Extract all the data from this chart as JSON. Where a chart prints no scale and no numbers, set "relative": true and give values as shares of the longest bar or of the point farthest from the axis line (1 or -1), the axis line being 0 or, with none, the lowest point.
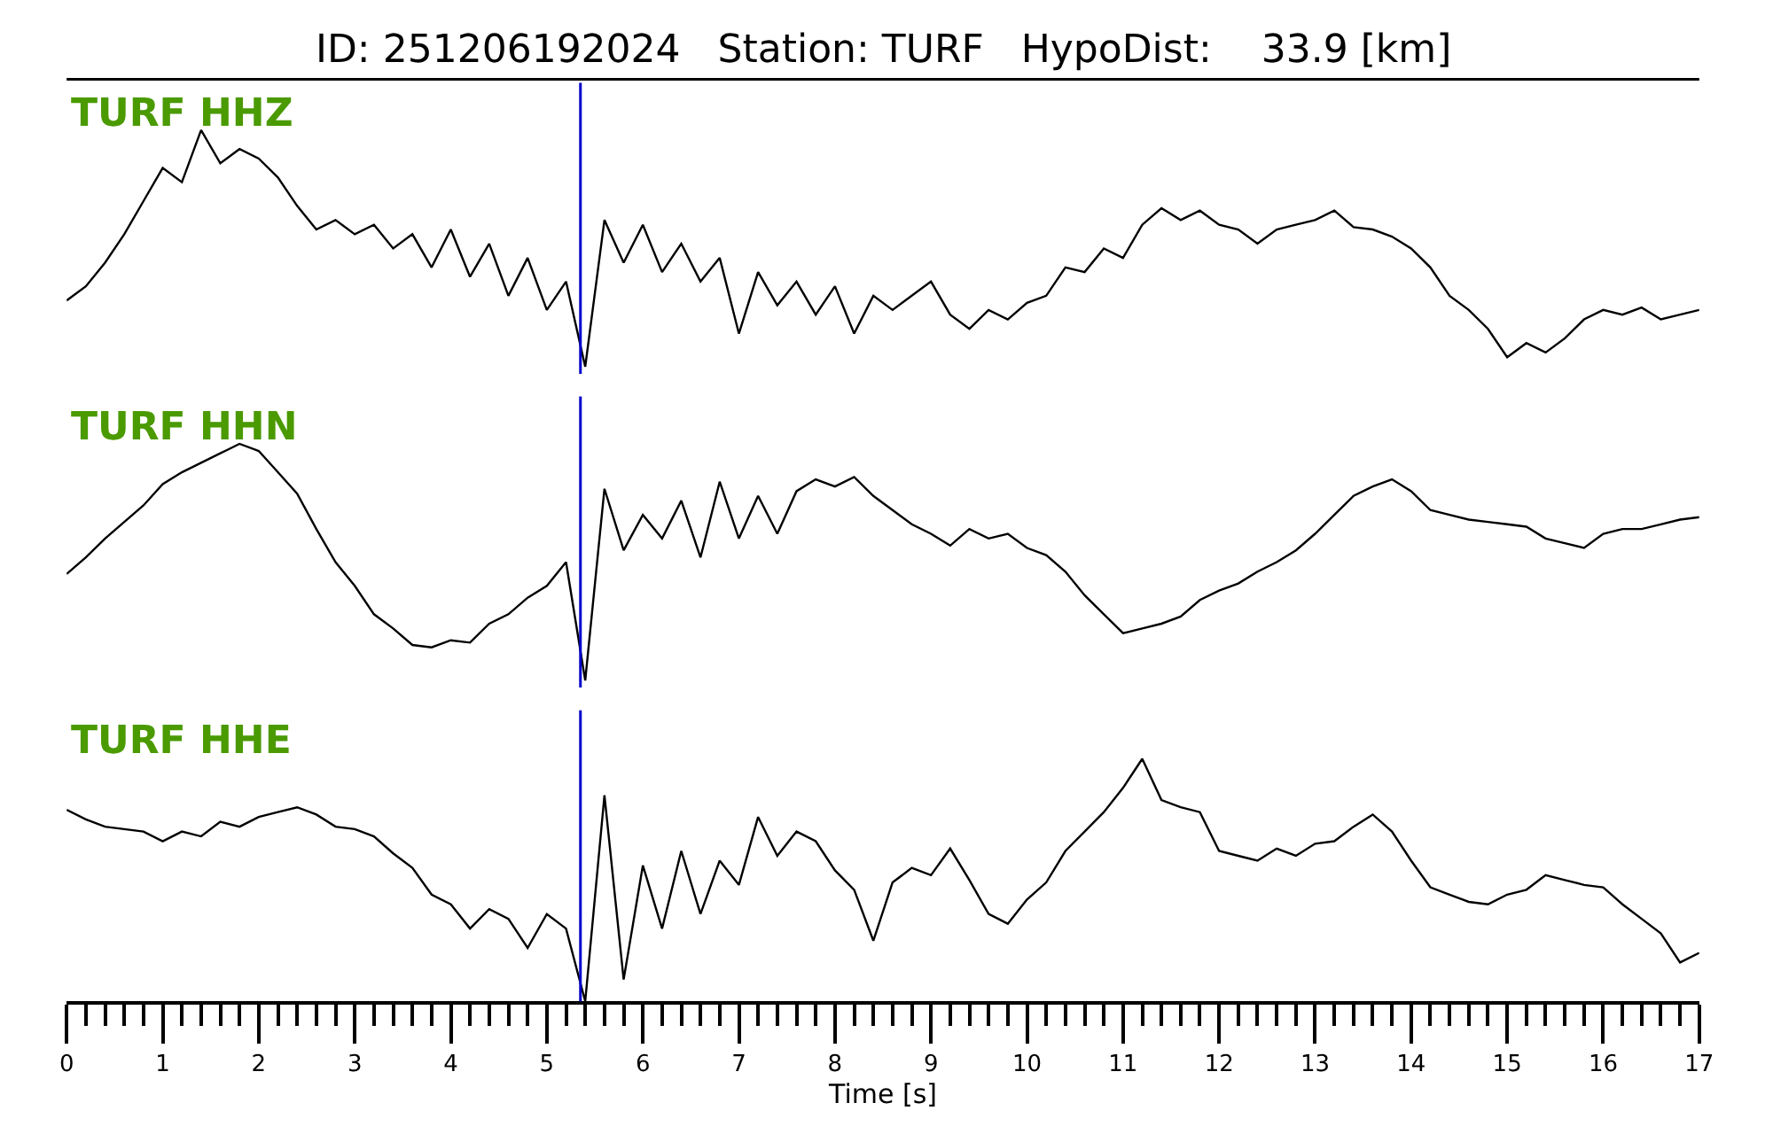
{
  "chart_data": [
    {
      "type": "line",
      "title": "ID: 251206192024   Station: TURF   HypoDist:    33.9 [km]",
      "relative": true,
      "tick_labels": false,
      "xlim": [
        0,
        17
      ],
      "x": [
        0,
        0.2,
        0.4,
        0.6,
        0.8,
        1,
        1.2,
        1.4,
        1.6,
        1.8,
        2,
        2.2,
        2.4,
        2.6,
        2.8,
        3,
        3.2,
        3.4,
        3.6,
        3.8,
        4,
        4.2,
        4.4,
        4.6,
        4.8,
        5,
        5.2,
        5.4,
        5.6,
        5.8,
        6,
        6.2,
        6.4,
        6.6,
        6.8,
        7,
        7.2,
        7.4,
        7.6,
        7.8,
        8,
        8.2,
        8.4,
        8.6,
        8.8,
        9,
        9.2,
        9.4,
        9.6,
        9.8,
        10,
        10.2,
        10.4,
        10.6,
        10.8,
        11,
        11.2,
        11.4,
        11.6,
        11.8,
        12,
        12.2,
        12.4,
        12.6,
        12.8,
        13,
        13.2,
        13.4,
        13.6,
        13.8,
        14,
        14.2,
        14.4,
        14.6,
        14.8,
        15,
        15.2,
        15.4,
        15.6,
        15.8,
        16,
        16.2,
        16.4,
        16.6,
        16.8,
        17
      ],
      "series": [
        {
          "name": "TURF HHZ",
          "color": "#000000",
          "values": [
            0.28,
            0.34,
            0.44,
            0.56,
            0.7,
            0.84,
            0.78,
            1.0,
            0.86,
            0.92,
            0.88,
            0.8,
            0.68,
            0.58,
            0.62,
            0.56,
            0.6,
            0.5,
            0.56,
            0.42,
            0.58,
            0.38,
            0.52,
            0.3,
            0.46,
            0.24,
            0.36,
            0.0,
            0.62,
            0.44,
            0.6,
            0.4,
            0.52,
            0.36,
            0.46,
            0.14,
            0.4,
            0.26,
            0.36,
            0.22,
            0.34,
            0.14,
            0.3,
            0.24,
            0.3,
            0.36,
            0.22,
            0.16,
            0.24,
            0.2,
            0.27,
            0.3,
            0.42,
            0.4,
            0.5,
            0.46,
            0.6,
            0.67,
            0.62,
            0.66,
            0.6,
            0.58,
            0.52,
            0.58,
            0.6,
            0.62,
            0.66,
            0.59,
            0.58,
            0.55,
            0.5,
            0.42,
            0.3,
            0.24,
            0.16,
            0.04,
            0.1,
            0.06,
            0.12,
            0.2,
            0.24,
            0.22,
            0.25,
            0.2,
            0.22,
            0.24
          ]
        }
      ],
      "ref_lines": [
        {
          "axis": "x",
          "value": 5.35,
          "color": "#0000cc"
        }
      ]
    },
    {
      "type": "line",
      "relative": true,
      "tick_labels": false,
      "xlim": [
        0,
        17
      ],
      "x": [
        0,
        0.2,
        0.4,
        0.6,
        0.8,
        1,
        1.2,
        1.4,
        1.6,
        1.8,
        2,
        2.2,
        2.4,
        2.6,
        2.8,
        3,
        3.2,
        3.4,
        3.6,
        3.8,
        4,
        4.2,
        4.4,
        4.6,
        4.8,
        5,
        5.2,
        5.4,
        5.6,
        5.8,
        6,
        6.2,
        6.4,
        6.6,
        6.8,
        7,
        7.2,
        7.4,
        7.6,
        7.8,
        8,
        8.2,
        8.4,
        8.6,
        8.8,
        9,
        9.2,
        9.4,
        9.6,
        9.8,
        10,
        10.2,
        10.4,
        10.6,
        10.8,
        11,
        11.2,
        11.4,
        11.6,
        11.8,
        12,
        12.2,
        12.4,
        12.6,
        12.8,
        13,
        13.2,
        13.4,
        13.6,
        13.8,
        14,
        14.2,
        14.4,
        14.6,
        14.8,
        15,
        15.2,
        15.4,
        15.6,
        15.8,
        16,
        16.2,
        16.4,
        16.6,
        16.8,
        17
      ],
      "series": [
        {
          "name": "TURF HHN",
          "color": "#000000",
          "values": [
            0.45,
            0.52,
            0.6,
            0.67,
            0.74,
            0.83,
            0.88,
            0.92,
            0.96,
            1.0,
            0.97,
            0.88,
            0.79,
            0.64,
            0.5,
            0.4,
            0.28,
            0.22,
            0.15,
            0.14,
            0.17,
            0.16,
            0.24,
            0.28,
            0.35,
            0.4,
            0.5,
            0.0,
            0.81,
            0.55,
            0.7,
            0.6,
            0.76,
            0.52,
            0.84,
            0.6,
            0.78,
            0.62,
            0.8,
            0.85,
            0.82,
            0.86,
            0.78,
            0.72,
            0.66,
            0.62,
            0.57,
            0.64,
            0.6,
            0.62,
            0.56,
            0.53,
            0.46,
            0.36,
            0.28,
            0.2,
            0.22,
            0.24,
            0.27,
            0.34,
            0.38,
            0.41,
            0.46,
            0.5,
            0.55,
            0.62,
            0.7,
            0.78,
            0.82,
            0.85,
            0.8,
            0.72,
            0.7,
            0.68,
            0.67,
            0.66,
            0.65,
            0.6,
            0.58,
            0.56,
            0.62,
            0.64,
            0.64,
            0.66,
            0.68,
            0.69
          ]
        }
      ],
      "ref_lines": [
        {
          "axis": "x",
          "value": 5.35,
          "color": "#0000cc"
        }
      ]
    },
    {
      "type": "line",
      "relative": true,
      "tick_labels": "x",
      "xlabel": "Time [s]",
      "xlim": [
        0,
        17
      ],
      "xticks": [
        0,
        1,
        2,
        3,
        4,
        5,
        6,
        7,
        8,
        9,
        10,
        11,
        12,
        13,
        14,
        15,
        16,
        17,
        {
          "value": 0.2,
          "label": null
        },
        {
          "value": 0.4,
          "label": null
        },
        {
          "value": 0.6,
          "label": null
        },
        {
          "value": 0.8,
          "label": null
        },
        {
          "value": 1.2,
          "label": null
        },
        {
          "value": 1.4,
          "label": null
        },
        {
          "value": 1.6,
          "label": null
        },
        {
          "value": 1.8,
          "label": null
        },
        {
          "value": 2.2,
          "label": null
        },
        {
          "value": 2.4,
          "label": null
        },
        {
          "value": 2.6,
          "label": null
        },
        {
          "value": 2.8,
          "label": null
        },
        {
          "value": 3.2,
          "label": null
        },
        {
          "value": 3.4,
          "label": null
        },
        {
          "value": 3.6,
          "label": null
        },
        {
          "value": 3.8,
          "label": null
        },
        {
          "value": 4.2,
          "label": null
        },
        {
          "value": 4.4,
          "label": null
        },
        {
          "value": 4.6,
          "label": null
        },
        {
          "value": 4.8,
          "label": null
        },
        {
          "value": 5.2,
          "label": null
        },
        {
          "value": 5.4,
          "label": null
        },
        {
          "value": 5.6,
          "label": null
        },
        {
          "value": 5.8,
          "label": null
        },
        {
          "value": 6.2,
          "label": null
        },
        {
          "value": 6.4,
          "label": null
        },
        {
          "value": 6.6,
          "label": null
        },
        {
          "value": 6.8,
          "label": null
        },
        {
          "value": 7.2,
          "label": null
        },
        {
          "value": 7.4,
          "label": null
        },
        {
          "value": 7.6,
          "label": null
        },
        {
          "value": 7.8,
          "label": null
        },
        {
          "value": 8.2,
          "label": null
        },
        {
          "value": 8.4,
          "label": null
        },
        {
          "value": 8.6,
          "label": null
        },
        {
          "value": 8.8,
          "label": null
        },
        {
          "value": 9.2,
          "label": null
        },
        {
          "value": 9.4,
          "label": null
        },
        {
          "value": 9.6,
          "label": null
        },
        {
          "value": 9.8,
          "label": null
        },
        {
          "value": 10.2,
          "label": null
        },
        {
          "value": 10.4,
          "label": null
        },
        {
          "value": 10.6,
          "label": null
        },
        {
          "value": 10.8,
          "label": null
        },
        {
          "value": 11.2,
          "label": null
        },
        {
          "value": 11.4,
          "label": null
        },
        {
          "value": 11.6,
          "label": null
        },
        {
          "value": 11.8,
          "label": null
        },
        {
          "value": 12.2,
          "label": null
        },
        {
          "value": 12.4,
          "label": null
        },
        {
          "value": 12.6,
          "label": null
        },
        {
          "value": 12.8,
          "label": null
        },
        {
          "value": 13.2,
          "label": null
        },
        {
          "value": 13.4,
          "label": null
        },
        {
          "value": 13.6,
          "label": null
        },
        {
          "value": 13.8,
          "label": null
        },
        {
          "value": 14.2,
          "label": null
        },
        {
          "value": 14.4,
          "label": null
        },
        {
          "value": 14.6,
          "label": null
        },
        {
          "value": 14.8,
          "label": null
        },
        {
          "value": 15.2,
          "label": null
        },
        {
          "value": 15.4,
          "label": null
        },
        {
          "value": 15.6,
          "label": null
        },
        {
          "value": 15.8,
          "label": null
        },
        {
          "value": 16.2,
          "label": null
        },
        {
          "value": 16.4,
          "label": null
        },
        {
          "value": 16.6,
          "label": null
        },
        {
          "value": 16.8,
          "label": null
        }
      ],
      "x": [
        0,
        0.2,
        0.4,
        0.6,
        0.8,
        1,
        1.2,
        1.4,
        1.6,
        1.8,
        2,
        2.2,
        2.4,
        2.6,
        2.8,
        3,
        3.2,
        3.4,
        3.6,
        3.8,
        4,
        4.2,
        4.4,
        4.6,
        4.8,
        5,
        5.2,
        5.4,
        5.6,
        5.8,
        6,
        6.2,
        6.4,
        6.6,
        6.8,
        7,
        7.2,
        7.4,
        7.6,
        7.8,
        8,
        8.2,
        8.4,
        8.6,
        8.8,
        9,
        9.2,
        9.4,
        9.6,
        9.8,
        10,
        10.2,
        10.4,
        10.6,
        10.8,
        11,
        11.2,
        11.4,
        11.6,
        11.8,
        12,
        12.2,
        12.4,
        12.6,
        12.8,
        13,
        13.2,
        13.4,
        13.6,
        13.8,
        14,
        14.2,
        14.4,
        14.6,
        14.8,
        15,
        15.2,
        15.4,
        15.6,
        15.8,
        16,
        16.2,
        16.4,
        16.6,
        16.8,
        17
      ],
      "series": [
        {
          "name": "TURF HHE",
          "color": "#000000",
          "values": [
            0.79,
            0.75,
            0.72,
            0.71,
            0.7,
            0.66,
            0.7,
            0.68,
            0.74,
            0.72,
            0.76,
            0.78,
            0.8,
            0.77,
            0.72,
            0.71,
            0.68,
            0.61,
            0.55,
            0.44,
            0.4,
            0.3,
            0.38,
            0.34,
            0.22,
            0.36,
            0.3,
            0.0,
            0.85,
            0.09,
            0.56,
            0.3,
            0.62,
            0.36,
            0.58,
            0.48,
            0.76,
            0.6,
            0.7,
            0.66,
            0.54,
            0.46,
            0.25,
            0.49,
            0.55,
            0.52,
            0.63,
            0.5,
            0.36,
            0.32,
            0.42,
            0.49,
            0.62,
            0.7,
            0.78,
            0.88,
            1.0,
            0.83,
            0.8,
            0.78,
            0.62,
            0.6,
            0.58,
            0.63,
            0.6,
            0.65,
            0.66,
            0.72,
            0.77,
            0.7,
            0.58,
            0.47,
            0.44,
            0.41,
            0.4,
            0.44,
            0.46,
            0.52,
            0.5,
            0.48,
            0.47,
            0.4,
            0.34,
            0.28,
            0.16,
            0.2
          ]
        }
      ],
      "ref_lines": [
        {
          "axis": "x",
          "value": 5.35,
          "color": "#0000cc"
        }
      ]
    }
  ]
}
